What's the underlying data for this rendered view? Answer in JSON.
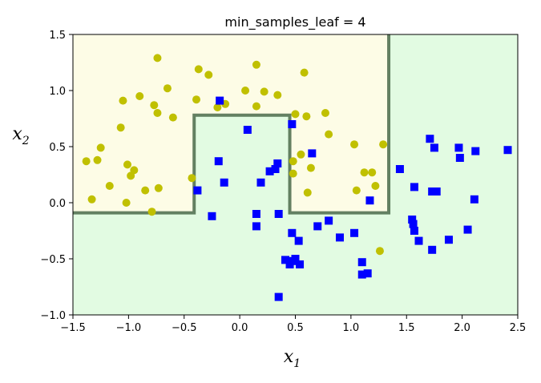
{
  "chart_data": {
    "type": "scatter",
    "title": "min_samples_leaf = 4",
    "xlabel": {
      "base": "x",
      "sub": "1"
    },
    "ylabel": {
      "base": "x",
      "sub": "2"
    },
    "xlim": [
      -1.5,
      2.5
    ],
    "ylim": [
      -1.0,
      1.5
    ],
    "xticks": [
      -1.5,
      -1.0,
      -0.5,
      0.0,
      0.5,
      1.0,
      1.5,
      2.0,
      2.5
    ],
    "yticks": [
      -1.0,
      -0.5,
      0.0,
      0.5,
      1.0,
      1.5
    ],
    "xtick_labels": [
      "−1.5",
      "−1.0",
      "−0.5",
      "0.0",
      "0.5",
      "1.0",
      "1.5",
      "2.0",
      "2.5"
    ],
    "ytick_labels": [
      "−1.0",
      "−0.5",
      "0.0",
      "0.5",
      "1.0",
      "1.5"
    ],
    "colors": {
      "region_class0": "#fdfce6",
      "region_class1": "#e2fbe2",
      "boundary": "#4a6a4a",
      "class0": "#c0c000",
      "class1": "#0000ff"
    },
    "boundary": [
      [
        -1.5,
        -0.09
      ],
      [
        -0.41,
        -0.09
      ],
      [
        -0.41,
        0.78
      ],
      [
        0.45,
        0.78
      ],
      [
        0.45,
        -0.09
      ],
      [
        1.34,
        -0.09
      ],
      [
        1.34,
        1.5
      ]
    ],
    "series": [
      {
        "marker": "circle",
        "points": [
          [
            -1.38,
            0.37
          ],
          [
            -1.33,
            0.03
          ],
          [
            -1.28,
            0.38
          ],
          [
            -1.25,
            0.49
          ],
          [
            -1.17,
            0.15
          ],
          [
            -1.07,
            0.67
          ],
          [
            -1.05,
            0.91
          ],
          [
            -1.02,
            0.0
          ],
          [
            -1.01,
            0.34
          ],
          [
            -0.98,
            0.24
          ],
          [
            -0.95,
            0.29
          ],
          [
            -0.9,
            0.95
          ],
          [
            -0.85,
            0.11
          ],
          [
            -0.79,
            -0.08
          ],
          [
            -0.77,
            0.87
          ],
          [
            -0.74,
            1.29
          ],
          [
            -0.74,
            0.8
          ],
          [
            -0.73,
            0.13
          ],
          [
            -0.65,
            1.02
          ],
          [
            -0.6,
            0.76
          ],
          [
            -0.43,
            0.22
          ],
          [
            -0.39,
            0.92
          ],
          [
            -0.37,
            1.19
          ],
          [
            -0.28,
            1.14
          ],
          [
            -0.2,
            0.85
          ],
          [
            -0.13,
            0.88
          ],
          [
            0.05,
            1.0
          ],
          [
            0.15,
            1.23
          ],
          [
            0.15,
            0.86
          ],
          [
            0.22,
            0.99
          ],
          [
            0.34,
            0.96
          ],
          [
            0.48,
            0.26
          ],
          [
            0.48,
            0.37
          ],
          [
            0.5,
            0.79
          ],
          [
            0.55,
            0.43
          ],
          [
            0.58,
            1.16
          ],
          [
            0.6,
            0.77
          ],
          [
            0.61,
            0.09
          ],
          [
            0.64,
            0.31
          ],
          [
            0.77,
            0.8
          ],
          [
            0.8,
            0.61
          ],
          [
            1.03,
            0.52
          ],
          [
            1.05,
            0.11
          ],
          [
            1.12,
            0.27
          ],
          [
            1.19,
            0.27
          ],
          [
            1.22,
            0.15
          ],
          [
            1.26,
            -0.43
          ],
          [
            1.29,
            0.52
          ]
        ]
      },
      {
        "marker": "square",
        "points": [
          [
            -0.38,
            0.11
          ],
          [
            -0.25,
            -0.12
          ],
          [
            -0.19,
            0.37
          ],
          [
            -0.18,
            0.91
          ],
          [
            -0.14,
            0.18
          ],
          [
            0.07,
            0.65
          ],
          [
            0.15,
            -0.1
          ],
          [
            0.15,
            -0.21
          ],
          [
            0.19,
            0.18
          ],
          [
            0.27,
            0.28
          ],
          [
            0.32,
            0.3
          ],
          [
            0.34,
            0.35
          ],
          [
            0.35,
            -0.1
          ],
          [
            0.35,
            -0.84
          ],
          [
            0.41,
            -0.51
          ],
          [
            0.45,
            -0.55
          ],
          [
            0.47,
            0.7
          ],
          [
            0.47,
            -0.27
          ],
          [
            0.48,
            -0.52
          ],
          [
            0.5,
            -0.5
          ],
          [
            0.53,
            -0.34
          ],
          [
            0.54,
            -0.55
          ],
          [
            0.65,
            0.44
          ],
          [
            0.7,
            -0.21
          ],
          [
            0.8,
            -0.16
          ],
          [
            0.9,
            -0.31
          ],
          [
            1.03,
            -0.27
          ],
          [
            1.1,
            -0.53
          ],
          [
            1.1,
            -0.64
          ],
          [
            1.15,
            -0.63
          ],
          [
            1.17,
            0.02
          ],
          [
            1.44,
            0.3
          ],
          [
            1.55,
            -0.15
          ],
          [
            1.56,
            -0.19
          ],
          [
            1.57,
            -0.25
          ],
          [
            1.57,
            0.14
          ],
          [
            1.61,
            -0.34
          ],
          [
            1.71,
            0.57
          ],
          [
            1.73,
            0.1
          ],
          [
            1.73,
            -0.42
          ],
          [
            1.75,
            0.49
          ],
          [
            1.77,
            0.1
          ],
          [
            1.88,
            -0.33
          ],
          [
            1.97,
            0.49
          ],
          [
            1.98,
            0.4
          ],
          [
            2.05,
            -0.24
          ],
          [
            2.11,
            0.03
          ],
          [
            2.12,
            0.46
          ],
          [
            2.41,
            0.47
          ]
        ]
      }
    ]
  }
}
